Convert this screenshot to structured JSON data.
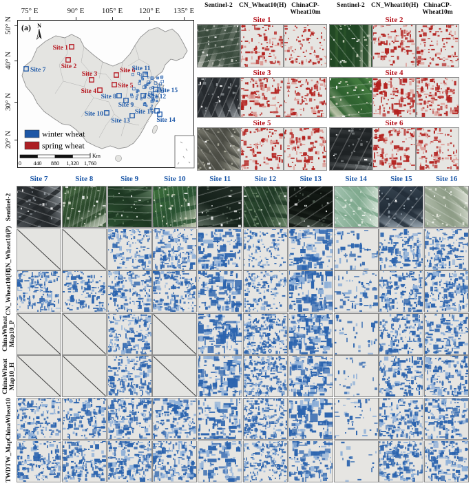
{
  "figure_label_a": "(a)",
  "colors": {
    "winter_wheat_blue": "#2a63ae",
    "spring_wheat_red": "#b3211e",
    "site_label_blue": "#1a56a7",
    "site_label_red": "#b5121b",
    "map_land": "#e4e4e1",
    "tile_bg": "#e6e5e2"
  },
  "map": {
    "x_axis_labels": [
      "75° E",
      "90° E",
      "105° E",
      "120° E",
      "135° E"
    ],
    "y_axis_labels": [
      "50° N",
      "40° N",
      "30° N",
      "20° N"
    ],
    "north_label": "N",
    "legend": [
      {
        "label": "winter wheat",
        "color": "#1d57a6"
      },
      {
        "label": "spring wheat",
        "color": "#ac1f24"
      }
    ],
    "scalebar": {
      "tick_labels": [
        "0",
        "440",
        "880",
        "1,320",
        "1,760"
      ],
      "unit": "Km"
    },
    "sites": [
      {
        "label": "Site 1",
        "type": "spring"
      },
      {
        "label": "Site 2",
        "type": "spring"
      },
      {
        "label": "Site 3",
        "type": "spring"
      },
      {
        "label": "Site 4",
        "type": "spring"
      },
      {
        "label": "Site 5",
        "type": "spring"
      },
      {
        "label": "Site 6",
        "type": "spring"
      },
      {
        "label": "Site 7",
        "type": "winter"
      },
      {
        "label": "Site 8",
        "type": "winter"
      },
      {
        "label": "Site 9",
        "type": "winter"
      },
      {
        "label": "Site 10",
        "type": "winter"
      },
      {
        "label": "Site 11",
        "type": "winter"
      },
      {
        "label": "Site 12",
        "type": "winter"
      },
      {
        "label": "Site 13",
        "type": "winter"
      },
      {
        "label": "Site 14",
        "type": "winter"
      },
      {
        "label": "Site 15",
        "type": "winter"
      },
      {
        "label": "Site 16",
        "type": "winter"
      }
    ]
  },
  "top_grid": {
    "column_headers": [
      "Sentinel-2",
      "CN_Wheat10(H)",
      "ChinaCP-\nWheat10m"
    ],
    "site_labels": [
      "Site 1",
      "Site 2",
      "Site 3",
      "Site 4",
      "Site 5",
      "Site 6"
    ]
  },
  "bottom_grid": {
    "column_headers": [
      "Site 7",
      "Site 8",
      "Site 9",
      "Site 10",
      "Site 11",
      "Site 12",
      "Site 13",
      "Site 14",
      "Site 15",
      "Site 16"
    ],
    "rows": [
      {
        "label": "Sentinel-2",
        "cells": [
          "image",
          "image",
          "image",
          "image",
          "image",
          "image",
          "image",
          "image",
          "image",
          "image"
        ]
      },
      {
        "label": "CN_Wheat10(P)",
        "cells": [
          "none",
          "none",
          "map",
          "map",
          "map",
          "map",
          "map",
          "map",
          "map",
          "map"
        ]
      },
      {
        "label": "CN_Wheat10(H)",
        "cells": [
          "map",
          "map",
          "map",
          "map",
          "map",
          "map",
          "map",
          "map",
          "map",
          "map"
        ]
      },
      {
        "label": "ChinaWheat\nMap10_P",
        "cells": [
          "none",
          "none",
          "map",
          "none",
          "map",
          "map",
          "map",
          "map",
          "map",
          "map"
        ]
      },
      {
        "label": "ChinaWheat\nMap10_H",
        "cells": [
          "none",
          "none",
          "map",
          "none",
          "map",
          "map",
          "map",
          "map",
          "map",
          "map"
        ]
      },
      {
        "label": "ChinaWheat10",
        "cells": [
          "map",
          "map",
          "map",
          "map",
          "map",
          "map",
          "map",
          "map",
          "map",
          "map"
        ]
      },
      {
        "label": "TWDTW_Map",
        "cells": [
          "map",
          "map",
          "map",
          "map",
          "map",
          "map",
          "map",
          "map",
          "map",
          "map"
        ]
      }
    ]
  }
}
